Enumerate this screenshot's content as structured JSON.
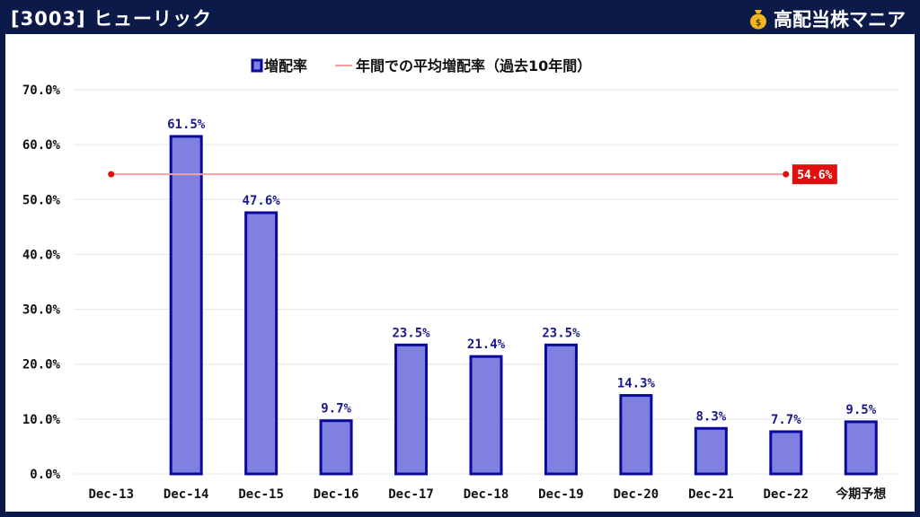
{
  "header": {
    "title": "[3003] ヒューリック",
    "brand": "高配当株マニア",
    "brand_icon": "money-bag-icon"
  },
  "legend": {
    "bar_label": "増配率",
    "line_label": "年間での平均増配率（過去10年間）"
  },
  "colors": {
    "bar_fill": "#8080e0",
    "bar_stroke": "#0a0a9a",
    "label": "#1a1a8a",
    "avg_line": "#f4a0a0",
    "avg_dot": "#e01010",
    "avg_badge": "#e01010",
    "axis_text": "#111111",
    "grid": "#e6e6e6",
    "frame": "#0c1a4a"
  },
  "chart_data": {
    "type": "bar",
    "categories": [
      "Dec-13",
      "Dec-14",
      "Dec-15",
      "Dec-16",
      "Dec-17",
      "Dec-18",
      "Dec-19",
      "Dec-20",
      "Dec-21",
      "Dec-22",
      "今期予想"
    ],
    "series": [
      {
        "name": "増配率",
        "values": [
          null,
          61.5,
          47.6,
          9.7,
          23.5,
          21.4,
          23.5,
          14.3,
          8.3,
          7.7,
          9.5
        ]
      }
    ],
    "data_labels": [
      "",
      "61.5%",
      "47.6%",
      "9.7%",
      "23.5%",
      "21.4%",
      "23.5%",
      "14.3%",
      "8.3%",
      "7.7%",
      "9.5%"
    ],
    "average_line": {
      "name": "年間での平均増配率（過去10年間）",
      "value": 54.6,
      "label": "54.6%"
    },
    "yticks": [
      "0.0%",
      "10.0%",
      "20.0%",
      "30.0%",
      "40.0%",
      "50.0%",
      "60.0%",
      "70.0%"
    ],
    "ylim": [
      0,
      70
    ],
    "grid": true,
    "legend_position": "top-center",
    "title": "",
    "xlabel": "",
    "ylabel": ""
  }
}
